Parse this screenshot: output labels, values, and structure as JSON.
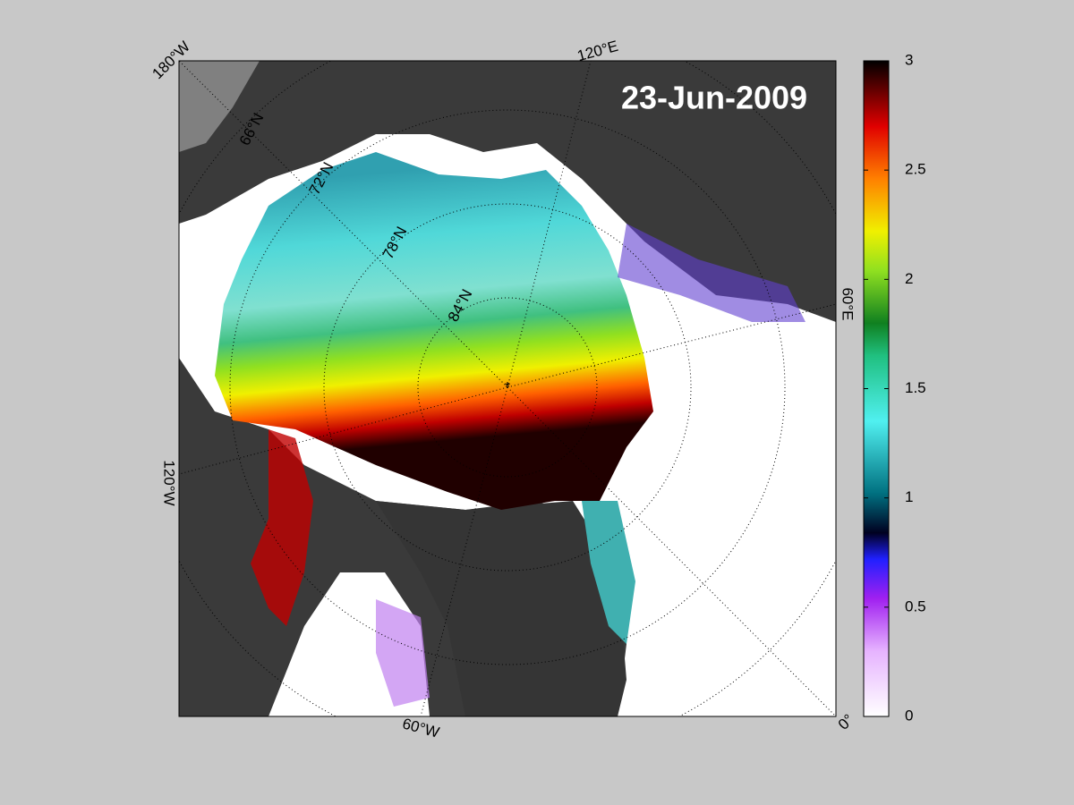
{
  "map": {
    "date": "23-Jun-2009",
    "longitude_labels": [
      "180°W",
      "120°E",
      "60°E",
      "0°",
      "60°W",
      "120°W"
    ],
    "latitude_labels": [
      "66°N",
      "72°N",
      "78°N",
      "84°N"
    ]
  },
  "colorbar": {
    "lim": [
      0,
      3
    ],
    "ticks": [
      0,
      0.5,
      1,
      1.5,
      2,
      2.5,
      3
    ]
  }
}
